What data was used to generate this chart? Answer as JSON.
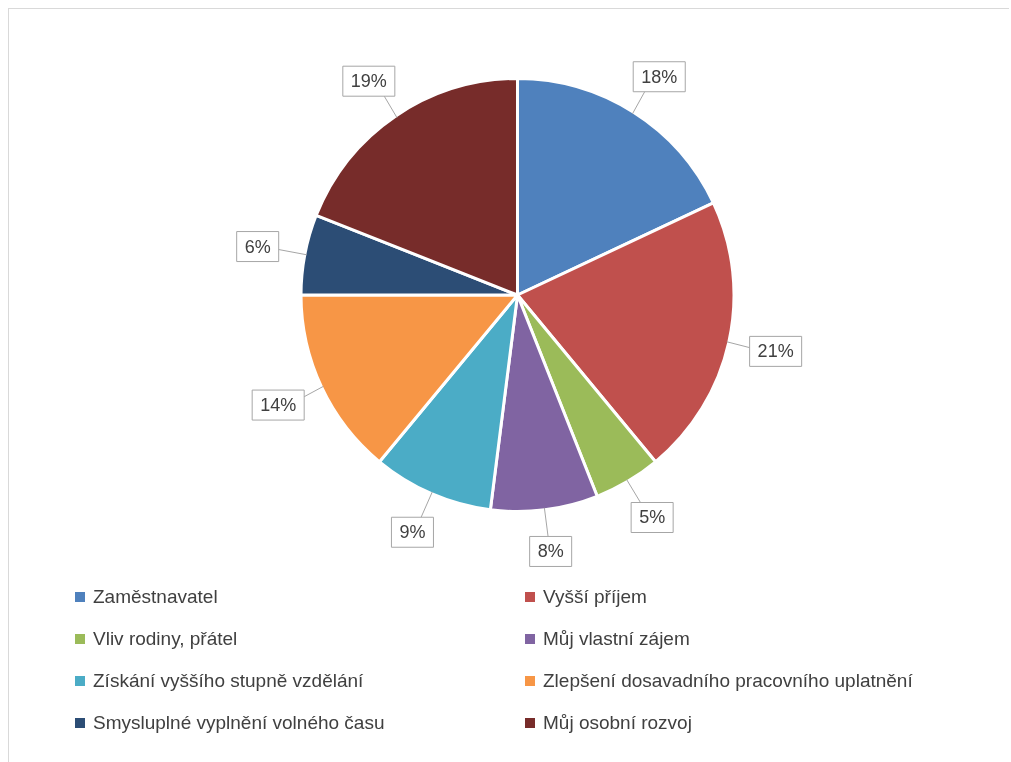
{
  "chart_data": {
    "type": "pie",
    "categories": [
      "Zaměstnavatel",
      "Vyšší příjem",
      "Vliv rodiny, přátel",
      "Můj vlastní zájem",
      "Získání vyššího stupně vzdělání",
      "Zlepšení dosavadního pracovního uplatnění",
      "Smysluplné vyplnění volného času",
      "Můj osobní rozvoj"
    ],
    "values": [
      18,
      21,
      5,
      8,
      9,
      14,
      6,
      19
    ],
    "colors": [
      "#4f81bd",
      "#c0504d",
      "#9bbb59",
      "#8064a2",
      "#4bacc6",
      "#f79646",
      "#2c4d75",
      "#772c2a"
    ],
    "value_labels": [
      "18%",
      "21%",
      "5%",
      "8%",
      "9%",
      "14%",
      "6%",
      "19%"
    ],
    "legend": "bottom"
  }
}
